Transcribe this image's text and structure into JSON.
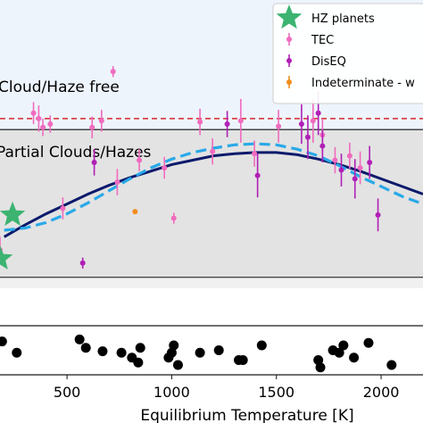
{
  "chart_data": [
    {
      "type": "scatter",
      "region_labels": {
        "upper": "Cloud/Haze free",
        "middle": "Partial Clouds/Hazes"
      },
      "xlim": [
        180,
        2200
      ],
      "ylim": [
        -0.55,
        2.1
      ],
      "region_bounds": {
        "partial_bottom": -0.45,
        "partial_top": 0.9,
        "free_top": 2.1
      },
      "reference_line_y": 1.0,
      "colors": {
        "upper_band": "#eef4fc",
        "middle_band": "#e3e3e3",
        "lower_band": "#f0f0f0",
        "reference_line": "#d62728",
        "fit_solid": "#0b1a6b",
        "fit_dashed": "#29a9e8",
        "hz": "#3cb371",
        "tec": "#f06bbf",
        "diseq": "#b01fb6",
        "indeterminate": "#f28c1c"
      },
      "legend": {
        "placement": "top-right",
        "entries": [
          {
            "label": "HZ planets",
            "marker": "star",
            "color": "#3cb371"
          },
          {
            "label": "TEC",
            "marker": "errorbar",
            "color": "#f06bbf"
          },
          {
            "label": "DisEQ",
            "marker": "errorbar",
            "color": "#b01fb6"
          },
          {
            "label": "Indeterminate - w",
            "marker": "errorbar",
            "color": "#f28c1c"
          }
        ]
      },
      "fit_solid": {
        "x": [
          200,
          300,
          400,
          500,
          600,
          700,
          800,
          900,
          1000,
          1100,
          1200,
          1300,
          1400,
          1500,
          1600,
          1700,
          1800,
          1900,
          2000,
          2100,
          2200
        ],
        "y": [
          -0.08,
          0.03,
          0.13,
          0.22,
          0.31,
          0.39,
          0.46,
          0.52,
          0.58,
          0.62,
          0.66,
          0.68,
          0.69,
          0.69,
          0.67,
          0.63,
          0.58,
          0.52,
          0.45,
          0.38,
          0.31
        ]
      },
      "fit_dashed": {
        "x": [
          200,
          300,
          400,
          500,
          600,
          700,
          800,
          900,
          1000,
          1100,
          1200,
          1300,
          1400,
          1500,
          1600,
          1700,
          1800,
          1900,
          2000,
          2100,
          2200
        ],
        "y": [
          -0.02,
          0.0,
          0.05,
          0.13,
          0.23,
          0.34,
          0.45,
          0.55,
          0.63,
          0.69,
          0.73,
          0.76,
          0.77,
          0.76,
          0.72,
          0.66,
          0.57,
          0.47,
          0.38,
          0.29,
          0.22
        ]
      },
      "hz_planets": [
        {
          "x": 240,
          "y": 0.12
        },
        {
          "x": 180,
          "y": -0.28
        }
      ],
      "tec": [
        {
          "x": 180,
          "y": -0.2,
          "err": 0.12
        },
        {
          "x": 340,
          "y": 1.05,
          "err": 0.1
        },
        {
          "x": 365,
          "y": 1.0,
          "err": 0.12
        },
        {
          "x": 385,
          "y": 0.92,
          "err": 0.08
        },
        {
          "x": 420,
          "y": 0.95,
          "err": 0.08
        },
        {
          "x": 480,
          "y": 0.18,
          "err": 0.1
        },
        {
          "x": 620,
          "y": 0.92,
          "err": 0.1
        },
        {
          "x": 665,
          "y": 0.98,
          "err": 0.1
        },
        {
          "x": 720,
          "y": 1.43,
          "err": 0.05
        },
        {
          "x": 740,
          "y": 0.42,
          "err": 0.12
        },
        {
          "x": 845,
          "y": 0.62,
          "err": 0.1
        },
        {
          "x": 965,
          "y": 0.55,
          "err": 0.1
        },
        {
          "x": 1010,
          "y": 0.09,
          "err": 0.05
        },
        {
          "x": 1135,
          "y": 0.97,
          "err": 0.12
        },
        {
          "x": 1195,
          "y": 0.7,
          "err": 0.12
        },
        {
          "x": 1330,
          "y": 0.98,
          "err": 0.2
        },
        {
          "x": 1395,
          "y": 0.68,
          "err": 0.12
        },
        {
          "x": 1510,
          "y": 0.93,
          "err": 0.15
        },
        {
          "x": 1675,
          "y": 0.98,
          "err": 0.2
        },
        {
          "x": 1720,
          "y": 0.85,
          "err": 0.15
        },
        {
          "x": 1780,
          "y": 0.62,
          "err": 0.12
        },
        {
          "x": 1850,
          "y": 0.66,
          "err": 0.12
        },
        {
          "x": 1900,
          "y": 0.55,
          "err": 0.15
        }
      ],
      "diseq": [
        {
          "x": 575,
          "y": -0.32,
          "err": 0.05
        },
        {
          "x": 630,
          "y": 0.6,
          "err": 0.12
        },
        {
          "x": 1265,
          "y": 0.95,
          "err": 0.12
        },
        {
          "x": 1410,
          "y": 0.48,
          "err": 0.2
        },
        {
          "x": 1620,
          "y": 0.95,
          "err": 0.18
        },
        {
          "x": 1650,
          "y": 0.83,
          "err": 0.2
        },
        {
          "x": 1700,
          "y": 1.05,
          "err": 0.2
        },
        {
          "x": 1720,
          "y": 0.75,
          "err": 0.15
        },
        {
          "x": 1810,
          "y": 0.53,
          "err": 0.15
        },
        {
          "x": 1875,
          "y": 0.45,
          "err": 0.18
        },
        {
          "x": 1945,
          "y": 0.6,
          "err": 0.15
        },
        {
          "x": 1985,
          "y": 0.12,
          "err": 0.15
        }
      ],
      "indeterminate": [
        {
          "x": 825,
          "y": 0.15,
          "err": 0.02
        }
      ]
    },
    {
      "type": "scatter",
      "xlim": [
        180,
        2200
      ],
      "ylim": [
        0,
        1
      ],
      "xlabel": "Equilibrium Temperature [K]",
      "xticks": [
        500,
        1000,
        1500,
        2000
      ],
      "xtick_labels": [
        "500",
        "1000",
        "1500",
        "2000"
      ],
      "color": "#000000",
      "points": [
        {
          "x": 190,
          "y": 0.68
        },
        {
          "x": 260,
          "y": 0.45
        },
        {
          "x": 560,
          "y": 0.72
        },
        {
          "x": 590,
          "y": 0.55
        },
        {
          "x": 670,
          "y": 0.48
        },
        {
          "x": 760,
          "y": 0.45
        },
        {
          "x": 810,
          "y": 0.35
        },
        {
          "x": 840,
          "y": 0.25
        },
        {
          "x": 850,
          "y": 0.55
        },
        {
          "x": 985,
          "y": 0.35
        },
        {
          "x": 1000,
          "y": 0.45
        },
        {
          "x": 1010,
          "y": 0.6
        },
        {
          "x": 1030,
          "y": 0.2
        },
        {
          "x": 1135,
          "y": 0.45
        },
        {
          "x": 1225,
          "y": 0.5
        },
        {
          "x": 1320,
          "y": 0.3
        },
        {
          "x": 1340,
          "y": 0.3
        },
        {
          "x": 1430,
          "y": 0.6
        },
        {
          "x": 1700,
          "y": 0.3
        },
        {
          "x": 1710,
          "y": 0.15
        },
        {
          "x": 1770,
          "y": 0.5
        },
        {
          "x": 1800,
          "y": 0.45
        },
        {
          "x": 1820,
          "y": 0.6
        },
        {
          "x": 1870,
          "y": 0.35
        },
        {
          "x": 1940,
          "y": 0.65
        },
        {
          "x": 2050,
          "y": 0.2
        }
      ]
    }
  ]
}
